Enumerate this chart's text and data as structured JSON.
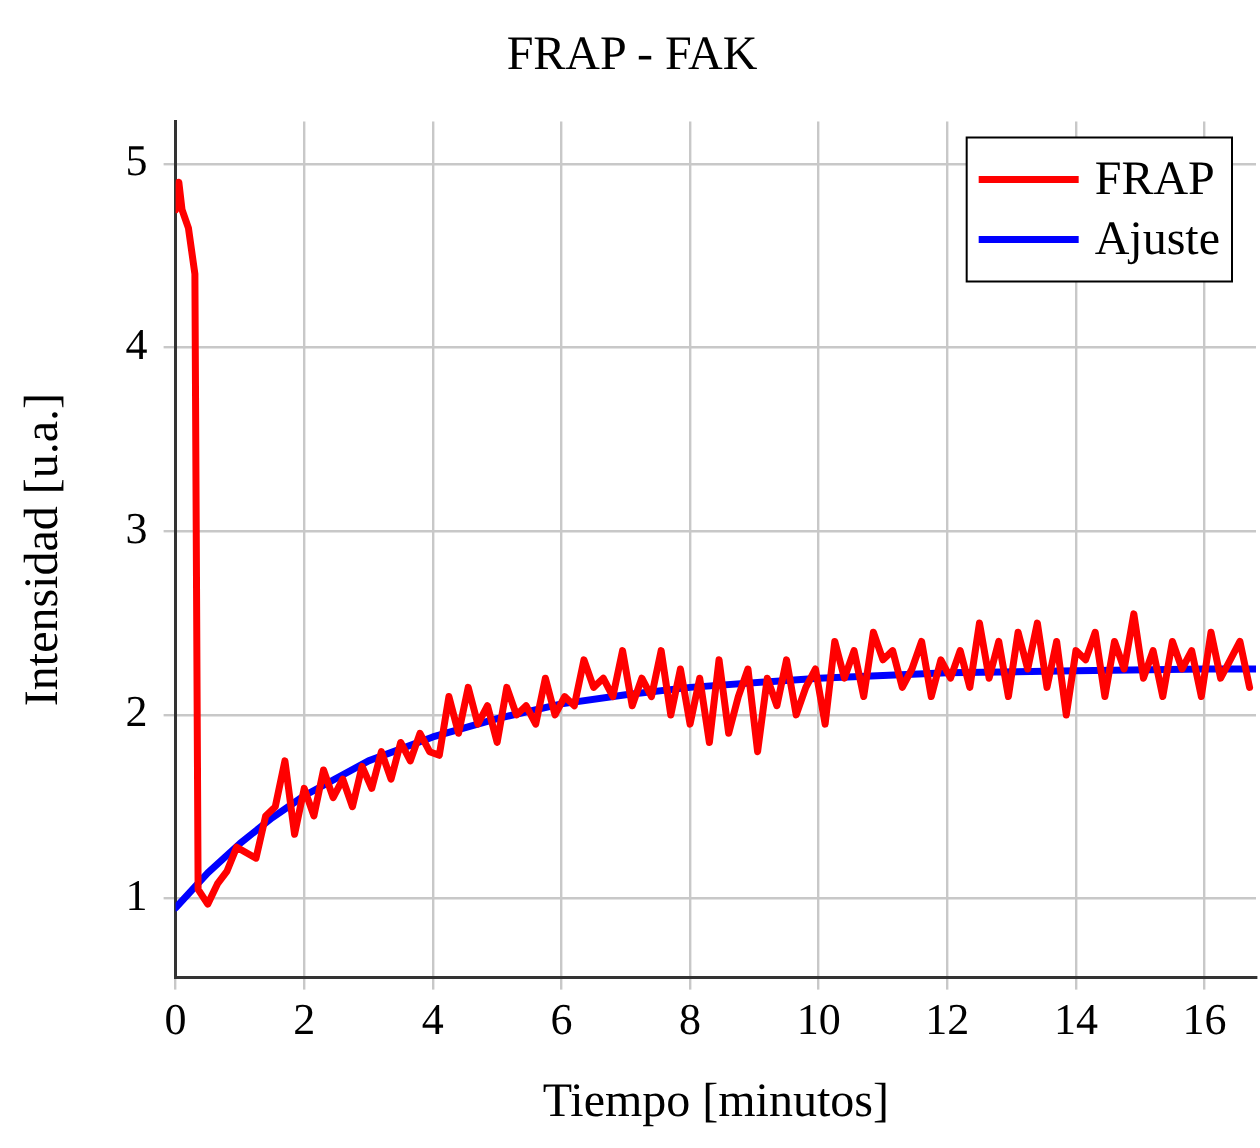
{
  "chart_data": {
    "type": "line",
    "title": "FRAP - FAK",
    "xlabel": "Tiempo [minutos]",
    "ylabel": "Intensidad [u.a.]",
    "xlim": [
      0,
      16.8
    ],
    "xticks": [
      0,
      2,
      4,
      6,
      8,
      10,
      12,
      14,
      16
    ],
    "ylim": [
      0.57,
      5.23
    ],
    "yticks": [
      1,
      2,
      3,
      4,
      5
    ],
    "grid": true,
    "legend": "top right",
    "marker": "none",
    "line_style": "solid",
    "series": [
      {
        "name": "FRAP",
        "color": "#ff0000",
        "x": [
          0,
          0.05,
          0.1,
          0.2,
          0.3,
          0.35,
          0.5,
          0.65,
          0.8,
          0.95,
          1.1,
          1.25,
          1.4,
          1.55,
          1.7,
          1.85,
          2,
          2.15,
          2.3,
          2.45,
          2.6,
          2.75,
          2.9,
          3.05,
          3.2,
          3.35,
          3.5,
          3.65,
          3.8,
          3.95,
          4.1,
          4.25,
          4.4,
          4.55,
          4.7,
          4.85,
          5,
          5.15,
          5.3,
          5.45,
          5.6,
          5.75,
          5.9,
          6.05,
          6.2,
          6.35,
          6.5,
          6.65,
          6.8,
          6.95,
          7.1,
          7.25,
          7.4,
          7.55,
          7.7,
          7.85,
          8,
          8.15,
          8.3,
          8.45,
          8.6,
          8.75,
          8.9,
          9.05,
          9.2,
          9.35,
          9.5,
          9.65,
          9.8,
          9.95,
          10.1,
          10.25,
          10.4,
          10.55,
          10.7,
          10.85,
          11,
          11.15,
          11.3,
          11.45,
          11.6,
          11.75,
          11.9,
          12.05,
          12.2,
          12.35,
          12.5,
          12.65,
          12.8,
          12.95,
          13.1,
          13.25,
          13.4,
          13.55,
          13.7,
          13.85,
          14,
          14.15,
          14.3,
          14.45,
          14.6,
          14.75,
          14.9,
          15.05,
          15.2,
          15.35,
          15.5,
          15.65,
          15.8,
          15.95,
          16.1,
          16.25,
          16.4,
          16.55,
          16.7
        ],
        "values": [
          4.75,
          4.9,
          4.75,
          4.65,
          4.4,
          1.05,
          0.97,
          1.08,
          1.15,
          1.28,
          1.25,
          1.22,
          1.45,
          1.5,
          1.75,
          1.35,
          1.6,
          1.45,
          1.7,
          1.55,
          1.65,
          1.5,
          1.72,
          1.6,
          1.8,
          1.65,
          1.85,
          1.75,
          1.9,
          1.8,
          1.78,
          2.1,
          1.9,
          2.15,
          1.95,
          2.05,
          1.85,
          2.15,
          2.0,
          2.05,
          1.95,
          2.2,
          2.0,
          2.1,
          2.05,
          2.3,
          2.15,
          2.2,
          2.1,
          2.35,
          2.05,
          2.2,
          2.1,
          2.35,
          2.0,
          2.25,
          1.95,
          2.2,
          1.85,
          2.3,
          1.9,
          2.1,
          2.25,
          1.8,
          2.2,
          2.05,
          2.3,
          2.0,
          2.15,
          2.25,
          1.95,
          2.4,
          2.2,
          2.35,
          2.1,
          2.45,
          2.3,
          2.35,
          2.15,
          2.25,
          2.4,
          2.1,
          2.3,
          2.2,
          2.35,
          2.15,
          2.5,
          2.2,
          2.4,
          2.1,
          2.45,
          2.25,
          2.5,
          2.15,
          2.4,
          2.0,
          2.35,
          2.3,
          2.45,
          2.1,
          2.4,
          2.25,
          2.55,
          2.2,
          2.35,
          2.1,
          2.4,
          2.25,
          2.35,
          2.1,
          2.45,
          2.2,
          2.3,
          2.4,
          2.15
        ]
      },
      {
        "name": "Ajuste",
        "color": "#0000ff",
        "x": [
          0,
          0.5,
          1,
          1.5,
          2,
          3,
          4,
          5,
          6,
          7,
          8,
          10,
          12,
          14,
          16,
          16.8
        ],
        "values": [
          0.95,
          1.14,
          1.3,
          1.44,
          1.56,
          1.75,
          1.88,
          1.98,
          2.06,
          2.11,
          2.15,
          2.2,
          2.23,
          2.24,
          2.25,
          2.25
        ]
      }
    ]
  }
}
